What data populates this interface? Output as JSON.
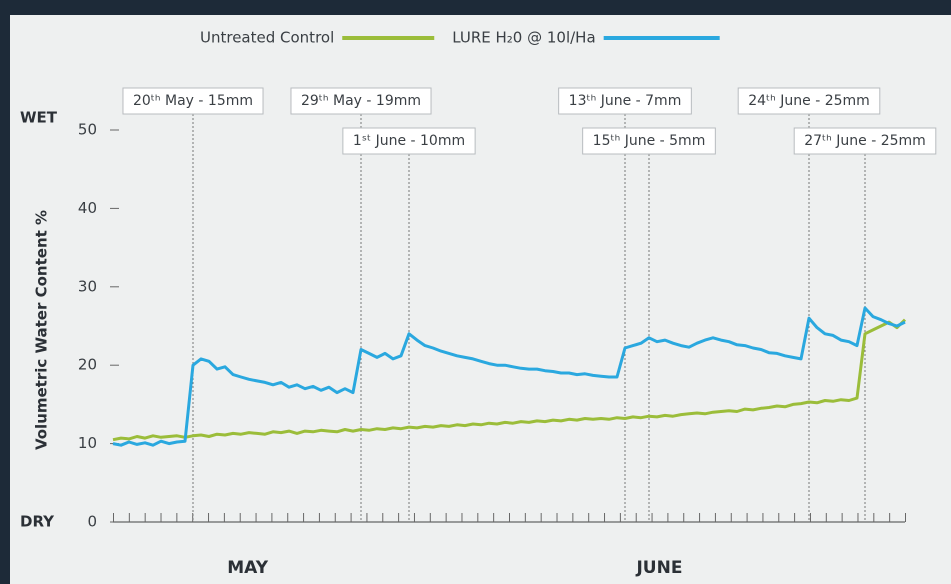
{
  "chart_data": {
    "type": "line",
    "legend": "top",
    "ylabel": "Volumetric Water Content  %",
    "y_end_labels": {
      "top": "WET",
      "bottom": "DRY"
    },
    "months": [
      "MAY",
      "JUNE"
    ],
    "ylim": [
      0,
      50
    ],
    "yticks": [
      0,
      10,
      20,
      30,
      40,
      50
    ],
    "series": [
      {
        "name": "Untreated Control",
        "color": "#9bbd3a",
        "values": [
          10.5,
          10.7,
          10.6,
          10.9,
          10.7,
          11,
          10.8,
          10.9,
          11,
          10.8,
          11,
          11.1,
          10.9,
          11.2,
          11.1,
          11.3,
          11.2,
          11.4,
          11.3,
          11.2,
          11.5,
          11.4,
          11.6,
          11.3,
          11.6,
          11.5,
          11.7,
          11.6,
          11.5,
          11.8,
          11.6,
          11.8,
          11.7,
          11.9,
          11.8,
          12,
          11.9,
          12.1,
          12,
          12.2,
          12.1,
          12.3,
          12.2,
          12.4,
          12.3,
          12.5,
          12.4,
          12.6,
          12.5,
          12.7,
          12.6,
          12.8,
          12.7,
          12.9,
          12.8,
          13,
          12.9,
          13.1,
          13,
          13.2,
          13.1,
          13.2,
          13.1,
          13.3,
          13.2,
          13.4,
          13.3,
          13.5,
          13.4,
          13.6,
          13.5,
          13.7,
          13.8,
          13.9,
          13.8,
          14,
          14.1,
          14.2,
          14.1,
          14.4,
          14.3,
          14.5,
          14.6,
          14.8,
          14.7,
          15,
          15.1,
          15.3,
          15.2,
          15.5,
          15.4,
          15.6,
          15.5,
          15.8,
          24,
          24.5,
          25,
          25.5,
          24.8,
          25.8
        ]
      },
      {
        "name": "LURE H₂0 @ 10l/Ha",
        "color": "#2aa8df",
        "values": [
          10,
          9.8,
          10.2,
          9.9,
          10.1,
          9.8,
          10.3,
          10,
          10.2,
          10.3,
          20,
          20.8,
          20.5,
          19.5,
          19.8,
          18.8,
          18.5,
          18.2,
          18,
          17.8,
          17.5,
          17.8,
          17.2,
          17.5,
          17,
          17.3,
          16.8,
          17.2,
          16.5,
          17,
          16.5,
          22,
          21.5,
          21,
          21.5,
          20.8,
          21.2,
          24,
          23.2,
          22.5,
          22.2,
          21.8,
          21.5,
          21.2,
          21,
          20.8,
          20.5,
          20.2,
          20,
          20,
          19.8,
          19.6,
          19.5,
          19.5,
          19.3,
          19.2,
          19,
          19,
          18.8,
          18.9,
          18.7,
          18.6,
          18.5,
          18.5,
          22.2,
          22.5,
          22.8,
          23.5,
          23,
          23.2,
          22.8,
          22.5,
          22.3,
          22.8,
          23.2,
          23.5,
          23.2,
          23,
          22.6,
          22.5,
          22.2,
          22,
          21.6,
          21.5,
          21.2,
          21,
          20.8,
          26,
          24.8,
          24,
          23.8,
          23.2,
          23,
          22.5,
          27.3,
          26.2,
          25.8,
          25.3,
          25,
          25.5
        ]
      }
    ],
    "annotations": [
      {
        "label": "20ᵗʰ May - 15mm",
        "x": 10
      },
      {
        "label": "29ᵗʰ May - 19mm",
        "x": 31
      },
      {
        "label": "1ˢᵗ June - 10mm",
        "x": 37
      },
      {
        "label": "13ᵗʰ June - 7mm",
        "x": 64
      },
      {
        "label": "15ᵗʰ June - 5mm",
        "x": 67
      },
      {
        "label": "24ᵗʰ June - 25mm",
        "x": 87
      },
      {
        "label": "27ᵗʰ June - 25mm",
        "x": 94
      }
    ]
  }
}
